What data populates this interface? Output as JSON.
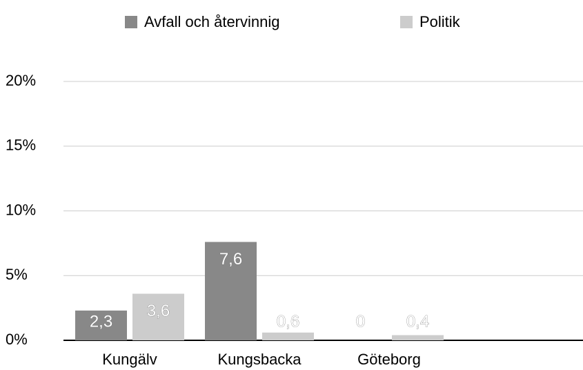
{
  "chart_data": {
    "type": "bar",
    "categories": [
      "Kungälv",
      "Kungsbacka",
      "Göteborg"
    ],
    "series": [
      {
        "name": "Avfall och återvinnig",
        "color": "#888888",
        "values": [
          2.3,
          7.6,
          0
        ],
        "value_labels": [
          "2,3",
          "7,6",
          "0"
        ]
      },
      {
        "name": "Politik",
        "color": "#cccccc",
        "values": [
          3.6,
          0.6,
          0.4
        ],
        "value_labels": [
          "3,6",
          "0,6",
          "0,4"
        ]
      }
    ],
    "ylim": [
      0,
      20
    ],
    "yticks": [
      {
        "value": 0,
        "label": "0%"
      },
      {
        "value": 5,
        "label": "5%"
      },
      {
        "value": 10,
        "label": "10%"
      },
      {
        "value": 15,
        "label": "15%"
      },
      {
        "value": 20,
        "label": "20%"
      }
    ],
    "grid": true,
    "legend": "top"
  }
}
